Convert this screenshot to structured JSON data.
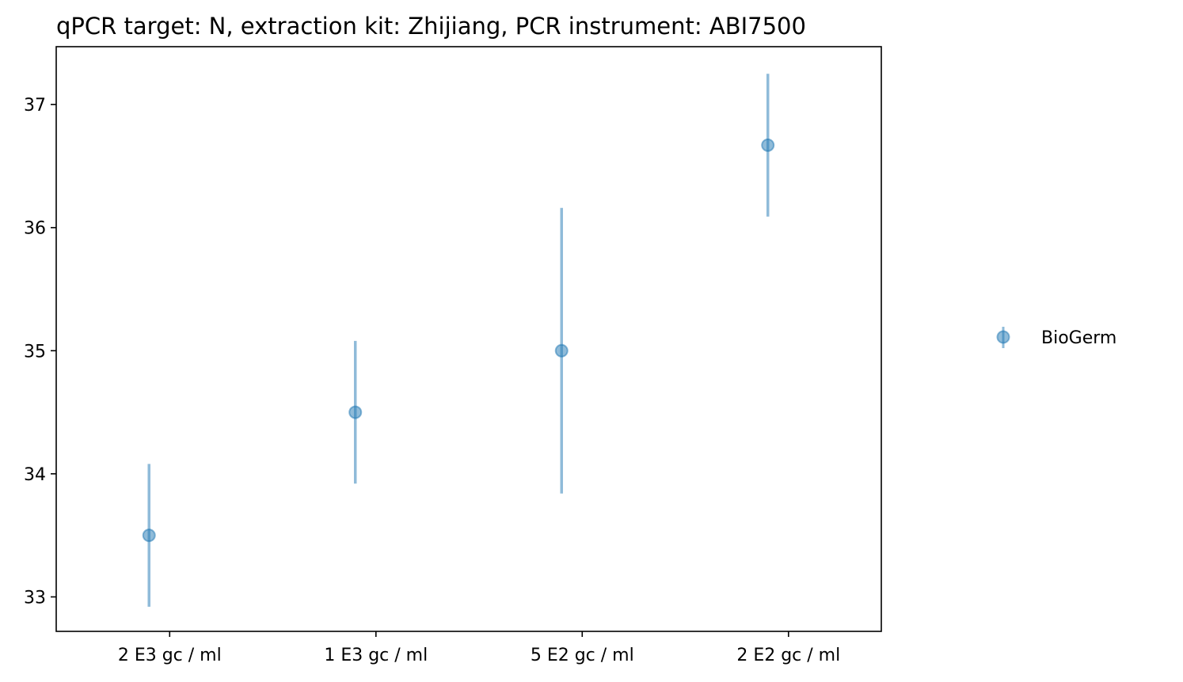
{
  "chart_data": {
    "type": "scatter",
    "title": "qPCR target: N, extraction kit: Zhijiang, PCR instrument: ABI7500",
    "xlabel": "",
    "ylabel": "",
    "x_tick_labels": [
      "2 E3 gc / ml",
      "1 E3 gc / ml",
      "5 E2 gc / ml",
      "2 E2 gc / ml"
    ],
    "y_ticks": [
      33,
      34,
      35,
      36,
      37
    ],
    "ylim": [
      32.72,
      37.47
    ],
    "grid": false,
    "legend_position": "right",
    "series": [
      {
        "name": "BioGerm",
        "color": "#1f77b4",
        "alpha": 0.5,
        "marker": "circle",
        "points": [
          {
            "x_position": 0.45,
            "y": 33.5,
            "err_low": 32.92,
            "err_high": 34.08
          },
          {
            "x_position": 1.45,
            "y": 34.5,
            "err_low": 33.92,
            "err_high": 35.08
          },
          {
            "x_position": 2.45,
            "y": 35.0,
            "err_low": 33.84,
            "err_high": 36.16
          },
          {
            "x_position": 3.45,
            "y": 36.67,
            "err_low": 36.09,
            "err_high": 37.25
          }
        ]
      }
    ]
  }
}
